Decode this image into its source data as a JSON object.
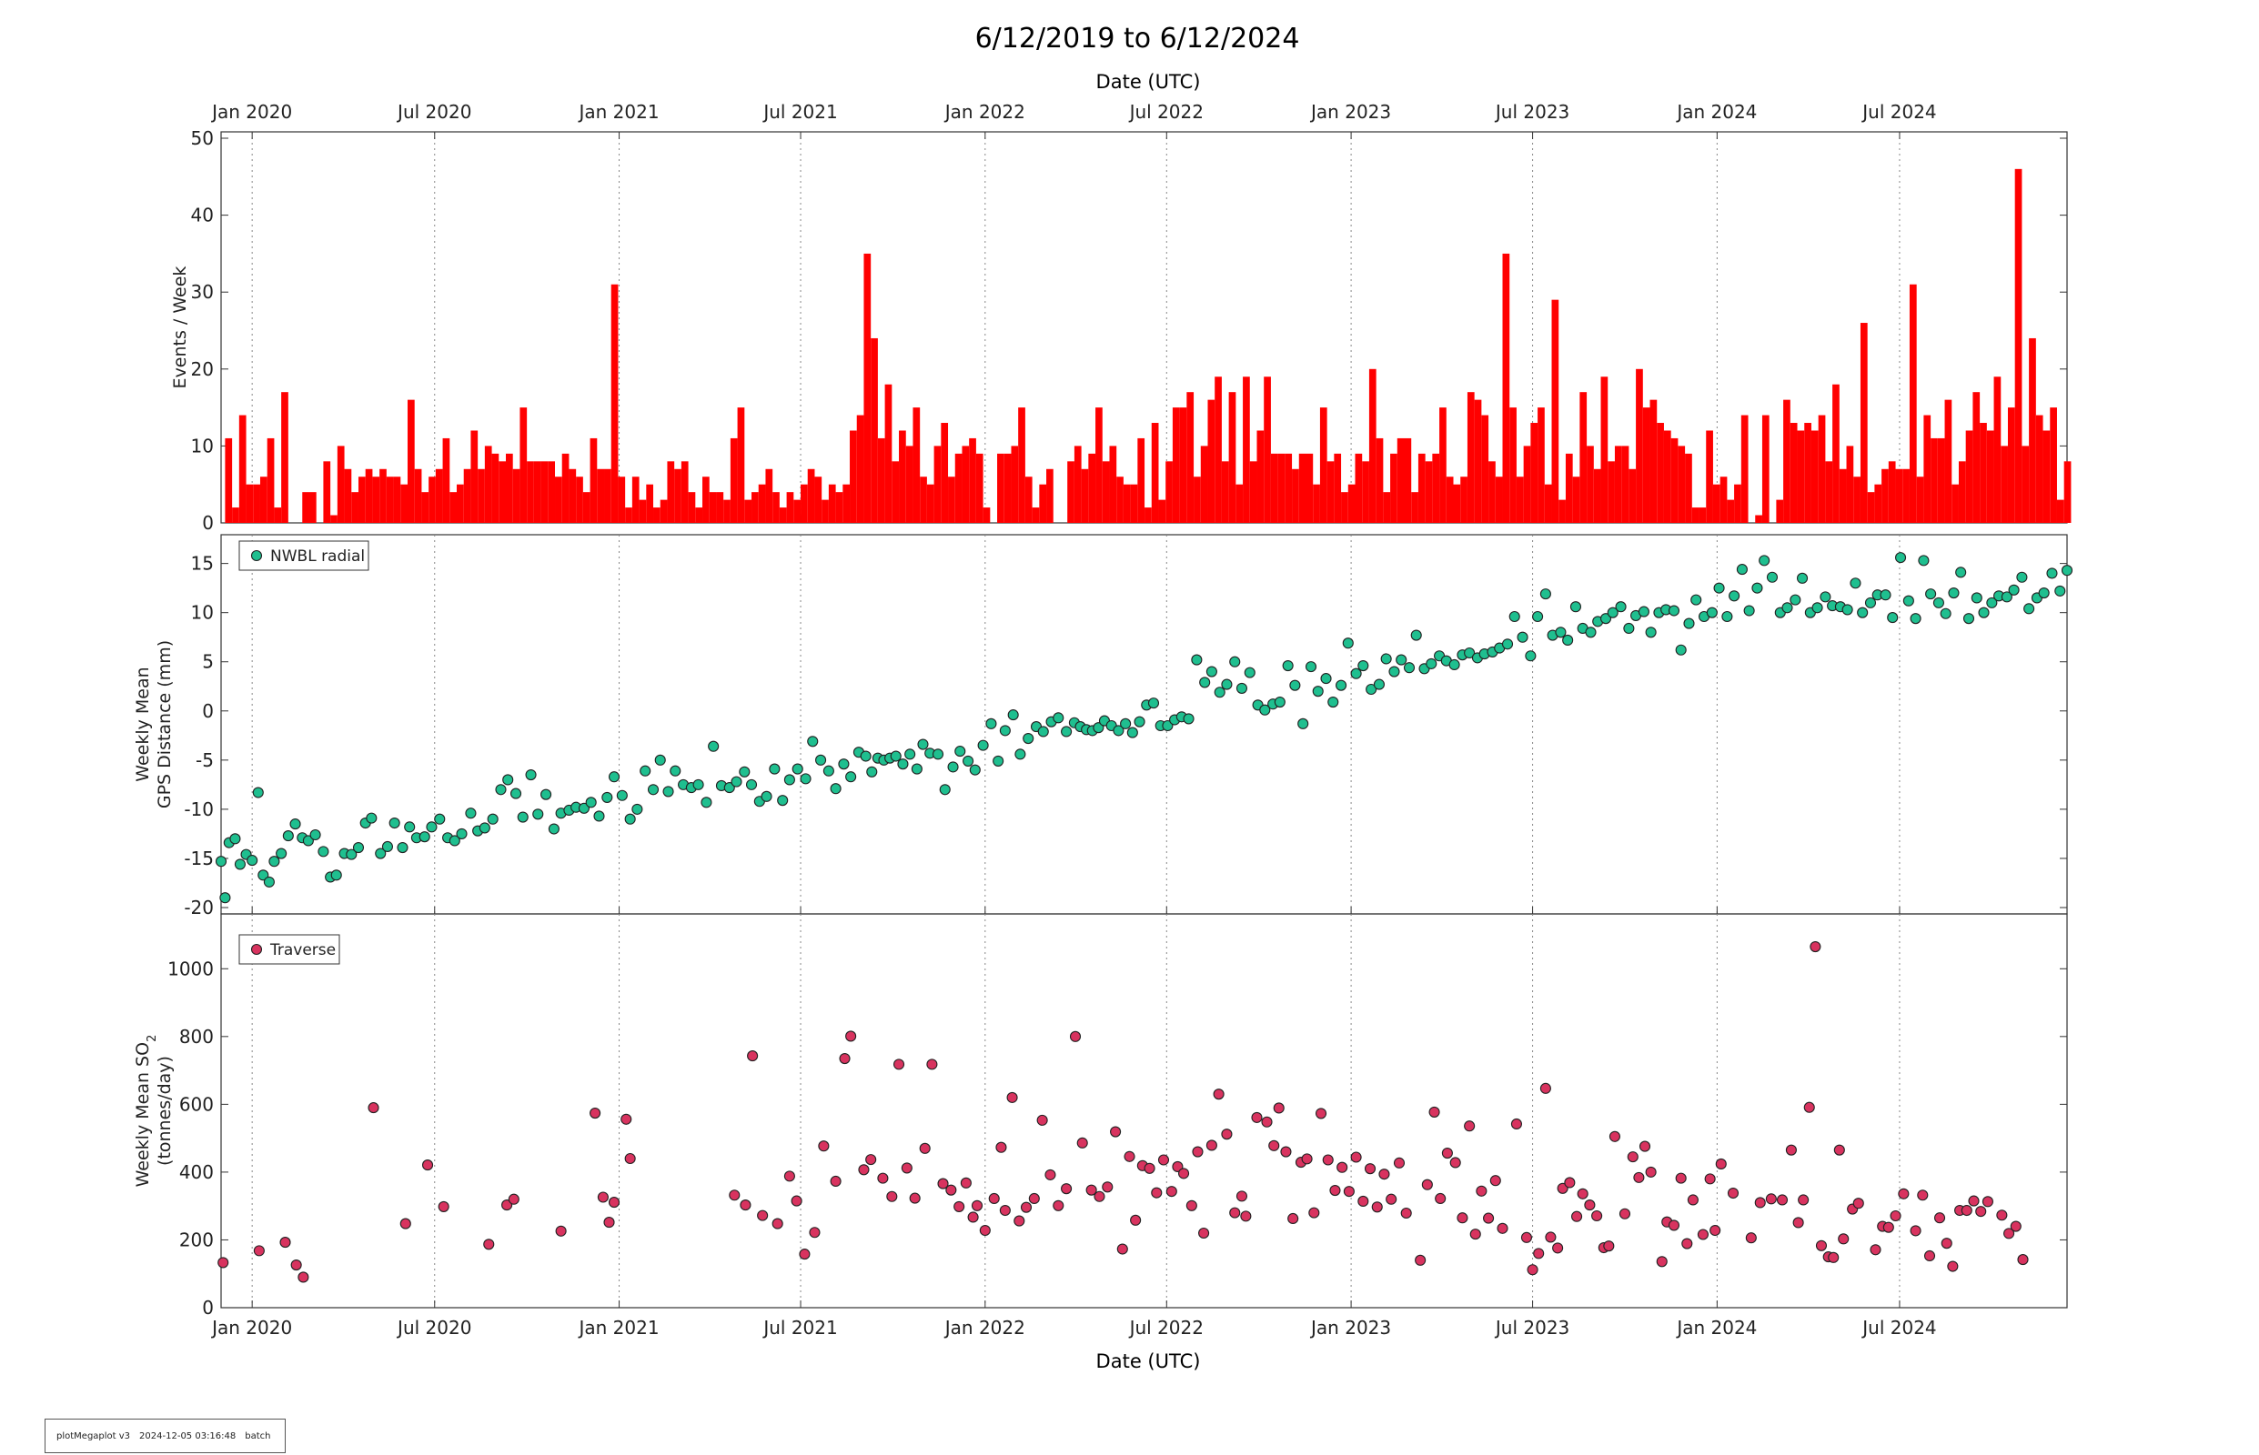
{
  "title": "6/12/2019 to 6/12/2024",
  "x_axis_label": "Date (UTC)",
  "x_ticks": [
    "Jan 2020",
    "Jul 2020",
    "Jan 2021",
    "Jul 2021",
    "Jan 2022",
    "Jul 2022",
    "Jan 2023",
    "Jul 2023",
    "Jan 2024",
    "Jul 2024"
  ],
  "footer": {
    "tool": "plotMegaplot v3",
    "timestamp": "2024-12-05 03:16:48",
    "mode": "batch"
  },
  "colors": {
    "events": "#ff0000",
    "gps": "#1fbf8f",
    "so2": "#d8335f"
  },
  "chart_data": [
    {
      "type": "bar",
      "ylabel": "Events / Week",
      "ylim": [
        0,
        50
      ],
      "yticks": [
        0,
        10,
        20,
        30,
        40,
        50
      ],
      "grid": "vertical dotted at x ticks",
      "x_start": "2019-12-05",
      "x_step_days": 7,
      "values": [
        11,
        2,
        14,
        5,
        5,
        6,
        11,
        2,
        17,
        0,
        0,
        4,
        4,
        0,
        8,
        1,
        10,
        7,
        4,
        6,
        7,
        6,
        7,
        6,
        6,
        5,
        16,
        7,
        4,
        6,
        7,
        11,
        4,
        5,
        7,
        12,
        7,
        10,
        9,
        8,
        9,
        7,
        15,
        8,
        8,
        8,
        8,
        6,
        9,
        7,
        6,
        4,
        11,
        7,
        7,
        31,
        6,
        2,
        6,
        3,
        5,
        2,
        3,
        8,
        7,
        8,
        4,
        2,
        6,
        4,
        4,
        3,
        11,
        15,
        3,
        4,
        5,
        7,
        4,
        2,
        4,
        3,
        5,
        7,
        6,
        3,
        5,
        4,
        5,
        12,
        14,
        35,
        24,
        11,
        18,
        8,
        12,
        10,
        15,
        6,
        5,
        10,
        13,
        6,
        9,
        10,
        11,
        9,
        2,
        0,
        9,
        9,
        10,
        15,
        6,
        2,
        5,
        7,
        0,
        0,
        8,
        10,
        7,
        9,
        15,
        8,
        10,
        6,
        5,
        5,
        11,
        2,
        13,
        3,
        8,
        15,
        15,
        17,
        6,
        10,
        16,
        19,
        8,
        17,
        5,
        19,
        8,
        12,
        19,
        9,
        9,
        9,
        7,
        9,
        9,
        5,
        15,
        8,
        9,
        4,
        5,
        9,
        8,
        20,
        11,
        4,
        9,
        11,
        11,
        4,
        9,
        8,
        9,
        15,
        6,
        5,
        6,
        17,
        16,
        14,
        8,
        6,
        35,
        15,
        6,
        10,
        13,
        15,
        5,
        29,
        3,
        9,
        6,
        17,
        10,
        7,
        19,
        8,
        10,
        10,
        7,
        20,
        15,
        16,
        13,
        12,
        11,
        10,
        9,
        2,
        2,
        12,
        5,
        6,
        3,
        5,
        14,
        0,
        1,
        14,
        0,
        3,
        16,
        13,
        12,
        13,
        12,
        14,
        8,
        18,
        7,
        10,
        6,
        26,
        4,
        5,
        7,
        8,
        7,
        7,
        31,
        6,
        14,
        11,
        11,
        16,
        5,
        8,
        12,
        17,
        13,
        12,
        19,
        10,
        15,
        46,
        10,
        24,
        14,
        12,
        15,
        3,
        8
      ]
    },
    {
      "type": "scatter",
      "ylabel": "Weekly Mean\nGPS Distance (mm)",
      "ylim": [
        -20,
        17
      ],
      "yticks": [
        -20,
        -15,
        -10,
        -5,
        0,
        5,
        10,
        15
      ],
      "legend": "NWBL radial",
      "legend_position": "top-left",
      "series": [
        {
          "name": "NWBL radial",
          "x": [],
          "y": []
        }
      ]
    },
    {
      "type": "scatter",
      "ylabel": "Weekly Mean SO2\n(tonnes/day)",
      "ylim": [
        0,
        1100
      ],
      "yticks": [
        0,
        200,
        400,
        600,
        800,
        1000
      ],
      "legend": "Traverse",
      "legend_position": "top-left",
      "series": [
        {
          "name": "Traverse",
          "x": [],
          "y": []
        }
      ]
    }
  ]
}
